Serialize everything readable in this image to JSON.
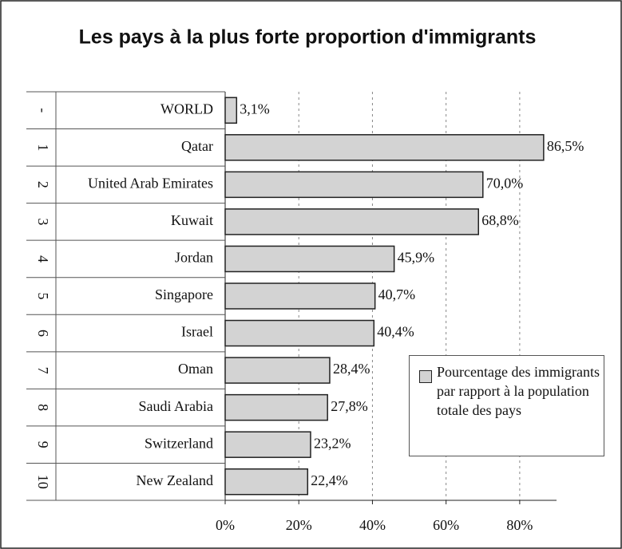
{
  "chart_data": {
    "type": "bar",
    "orientation": "horizontal",
    "title": "Les pays à la plus forte proportion d'immigrants",
    "ranks": [
      "-",
      "1",
      "2",
      "3",
      "4",
      "5",
      "6",
      "7",
      "8",
      "9",
      "10"
    ],
    "categories": [
      "WORLD",
      "Qatar",
      "United Arab Emirates",
      "Kuwait",
      "Jordan",
      "Singapore",
      "Israel",
      "Oman",
      "Saudi Arabia",
      "Switzerland",
      "New Zealand"
    ],
    "series": [
      {
        "name": "Pourcentage des immigrants par rapport à la population totale des pays",
        "color": "#d3d3d3",
        "values": [
          3.1,
          86.5,
          70.0,
          68.8,
          45.9,
          40.7,
          40.4,
          28.4,
          27.8,
          23.2,
          22.4
        ],
        "value_labels": [
          "3,1%",
          "86,5%",
          "70,0%",
          "68,8%",
          "45,9%",
          "40,7%",
          "40,4%",
          "28,4%",
          "27,8%",
          "23,2%",
          "22,4%"
        ]
      }
    ],
    "xlim": [
      0,
      90
    ],
    "xticks": [
      {
        "value": 0,
        "label": "0%"
      },
      {
        "value": 20,
        "label": "20%"
      },
      {
        "value": 40,
        "label": "40%"
      },
      {
        "value": 60,
        "label": "60%"
      },
      {
        "value": 80,
        "label": "80%"
      }
    ],
    "grid": true,
    "legend": "right"
  }
}
